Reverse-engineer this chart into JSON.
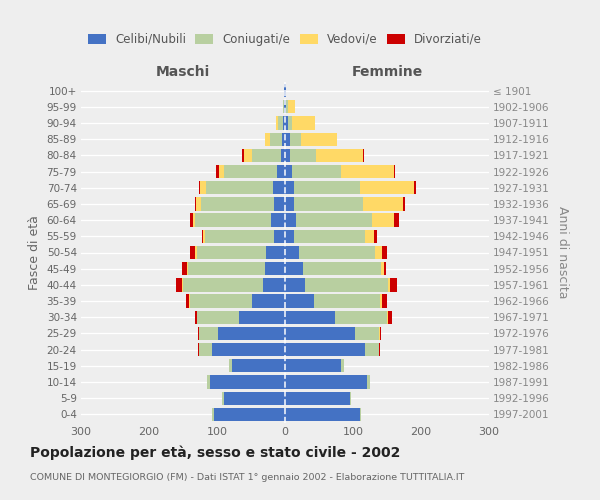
{
  "age_groups": [
    "0-4",
    "5-9",
    "10-14",
    "15-19",
    "20-24",
    "25-29",
    "30-34",
    "35-39",
    "40-44",
    "45-49",
    "50-54",
    "55-59",
    "60-64",
    "65-69",
    "70-74",
    "75-79",
    "80-84",
    "85-89",
    "90-94",
    "95-99",
    "100+"
  ],
  "birth_years": [
    "1997-2001",
    "1992-1996",
    "1987-1991",
    "1982-1986",
    "1977-1981",
    "1972-1976",
    "1967-1971",
    "1962-1966",
    "1957-1961",
    "1952-1956",
    "1947-1951",
    "1942-1946",
    "1937-1941",
    "1932-1936",
    "1927-1931",
    "1922-1926",
    "1917-1921",
    "1912-1916",
    "1907-1911",
    "1902-1906",
    "≤ 1901"
  ],
  "males_single": [
    105,
    90,
    110,
    78,
    108,
    98,
    68,
    48,
    32,
    30,
    28,
    16,
    20,
    16,
    18,
    12,
    6,
    4,
    3,
    1,
    1
  ],
  "males_married": [
    2,
    2,
    5,
    4,
    18,
    28,
    62,
    92,
    118,
    112,
    102,
    102,
    112,
    108,
    98,
    78,
    42,
    18,
    7,
    2,
    0
  ],
  "males_widowed": [
    0,
    0,
    0,
    0,
    0,
    0,
    0,
    1,
    1,
    2,
    2,
    2,
    4,
    7,
    9,
    7,
    13,
    7,
    3,
    0,
    0
  ],
  "males_divorced": [
    0,
    0,
    0,
    0,
    2,
    2,
    2,
    4,
    9,
    7,
    7,
    2,
    4,
    2,
    2,
    4,
    2,
    0,
    0,
    0,
    0
  ],
  "females_single": [
    110,
    95,
    120,
    83,
    118,
    103,
    73,
    43,
    30,
    26,
    20,
    13,
    16,
    13,
    13,
    10,
    8,
    7,
    4,
    2,
    1
  ],
  "females_married": [
    2,
    2,
    5,
    4,
    20,
    35,
    77,
    97,
    122,
    115,
    112,
    105,
    112,
    102,
    98,
    72,
    38,
    16,
    7,
    2,
    0
  ],
  "females_widowed": [
    0,
    0,
    0,
    0,
    0,
    1,
    1,
    3,
    3,
    4,
    11,
    13,
    33,
    58,
    78,
    78,
    68,
    53,
    33,
    11,
    1
  ],
  "females_divorced": [
    0,
    0,
    0,
    0,
    2,
    2,
    7,
    7,
    9,
    4,
    7,
    4,
    7,
    4,
    4,
    2,
    2,
    0,
    0,
    0,
    0
  ],
  "color_single": "#4472C4",
  "color_married": "#b8cfa0",
  "color_widowed": "#FFD966",
  "color_divorced": "#CC0000",
  "legend_labels": [
    "Celibi/Nubili",
    "Coniugati/e",
    "Vedovi/e",
    "Divorziati/e"
  ],
  "title": "Popolazione per età, sesso e stato civile - 2002",
  "subtitle": "COMUNE DI MONTEGIORGIO (FM) - Dati ISTAT 1° gennaio 2002 - Elaborazione TUTTITALIA.IT",
  "label_maschi": "Maschi",
  "label_femmine": "Femmine",
  "ylabel_left": "Fasce di età",
  "ylabel_right": "Anni di nascita",
  "xlim": 300
}
